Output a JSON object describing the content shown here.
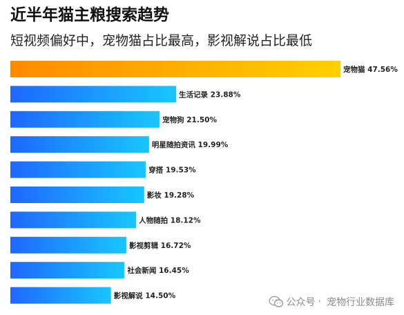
{
  "title": "近半年猫主粮搜索趋势",
  "subtitle": "短视频偏好中，宠物猫占比最高，影视解说占比最低",
  "colors": {
    "top_bar_gradient": [
      "#ff8a00",
      "#ffd000"
    ],
    "bar_gradient": [
      "#1f67ff",
      "#18c7ff"
    ],
    "label_color": "#222222"
  },
  "watermark": {
    "source": "公众号",
    "separator": "·",
    "account": "宠物行业数据库",
    "icon": "wechat-icon"
  },
  "chart_data": {
    "type": "bar",
    "orientation": "horizontal",
    "categories": [
      "宠物猫",
      "生活记录",
      "宠物狗",
      "明星随拍资讯",
      "穿搭",
      "影妆",
      "人物随拍",
      "影视剪辑",
      "社会新闻",
      "影视解说"
    ],
    "values": [
      47.56,
      23.88,
      21.5,
      19.99,
      19.53,
      19.28,
      18.12,
      16.72,
      16.45,
      14.5
    ],
    "value_labels": [
      "47.56%",
      "23.88%",
      "21.50%",
      "19.99%",
      "19.53%",
      "19.28%",
      "18.12%",
      "16.72%",
      "16.45%",
      "14.50%"
    ],
    "unit": "%",
    "xlim": [
      0,
      47.56
    ],
    "grid": false,
    "legend": false
  }
}
